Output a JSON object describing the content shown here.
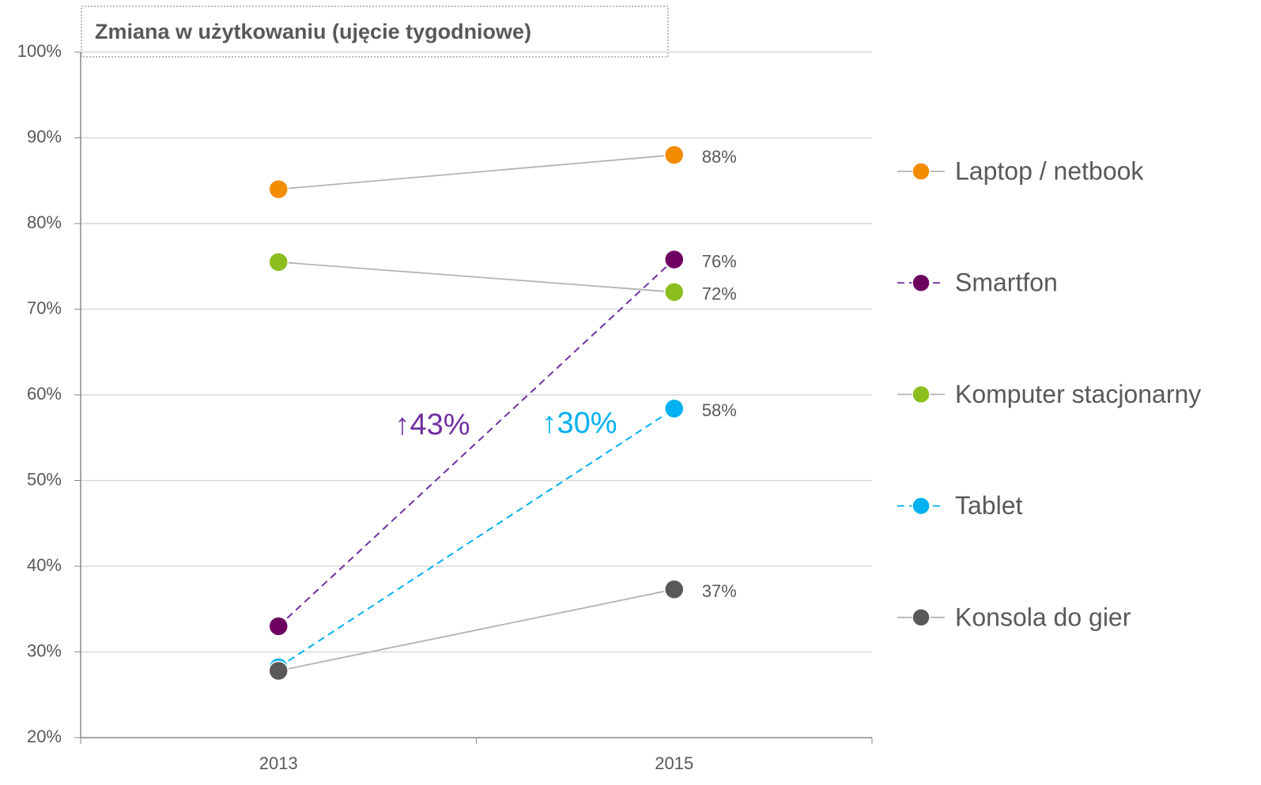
{
  "chart_data": {
    "type": "line",
    "title": "Zmiana w użytkowaniu (ujęcie tygodniowe)",
    "categories": [
      "2013",
      "2015"
    ],
    "series": [
      {
        "name": "Laptop / netbook",
        "color": "#f28c00",
        "line_color": "#b3b3b3",
        "dashed": false,
        "values": [
          84,
          88
        ],
        "value_labels": [
          null,
          "88%"
        ]
      },
      {
        "name": "Smartfon",
        "color": "#6e0060",
        "line_color": "#7030a0",
        "dashed": true,
        "values": [
          33,
          75.8
        ],
        "value_labels": [
          null,
          "76%"
        ]
      },
      {
        "name": "Komputer stacjonarny",
        "color": "#8cbe1e",
        "line_color": "#b3b3b3",
        "dashed": false,
        "values": [
          75.5,
          72
        ],
        "value_labels": [
          null,
          "72%"
        ]
      },
      {
        "name": "Tablet",
        "color": "#00b0f0",
        "line_color": "#00b0f0",
        "dashed": true,
        "values": [
          28.2,
          58.4
        ],
        "value_labels": [
          null,
          "58%"
        ]
      },
      {
        "name": "Konsola do gier",
        "color": "#595959",
        "line_color": "#b3b3b3",
        "dashed": false,
        "values": [
          27.8,
          37.3
        ],
        "value_labels": [
          null,
          "37%"
        ]
      }
    ],
    "annotations": [
      {
        "text": "↑43%",
        "color": "#7030a0"
      },
      {
        "text": "↑30%",
        "color": "#00b0f0"
      }
    ],
    "ylim": [
      20,
      100
    ],
    "yticks": [
      {
        "value": 20,
        "label": "20%"
      },
      {
        "value": 30,
        "label": "30%"
      },
      {
        "value": 40,
        "label": "40%"
      },
      {
        "value": 50,
        "label": "50%"
      },
      {
        "value": 60,
        "label": "60%"
      },
      {
        "value": 70,
        "label": "70%"
      },
      {
        "value": 80,
        "label": "80%"
      },
      {
        "value": 90,
        "label": "90%"
      },
      {
        "value": 100,
        "label": "100%"
      }
    ],
    "grid": true,
    "legend": "right"
  }
}
